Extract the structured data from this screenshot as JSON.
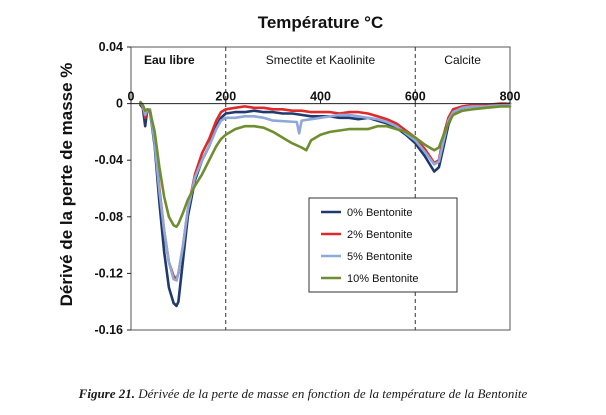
{
  "chart_data": {
    "type": "line",
    "title": "Température °C",
    "xlabel": "",
    "ylabel": "Dérivé de la perte de masse  %",
    "xlim": [
      0,
      800
    ],
    "ylim": [
      -0.16,
      0.04
    ],
    "xticks": [
      "0",
      "200",
      "400",
      "600",
      "800"
    ],
    "yticks": [
      "0.04",
      "0",
      "-0.04",
      "-0.08",
      "-0.12",
      "-0.16"
    ],
    "grid": false,
    "legend_position": "center-right",
    "regions": [
      {
        "label": "Eau libre",
        "from": 0,
        "to": 200
      },
      {
        "label": "Smectite et Kaolinite",
        "from": 200,
        "to": 600
      },
      {
        "label": "Calcite",
        "from": 600,
        "to": 800
      }
    ],
    "series": [
      {
        "name": "0% Bentonite",
        "color": "#1f3a6e",
        "points": [
          [
            20,
            -0.001
          ],
          [
            25,
            -0.003
          ],
          [
            30,
            -0.016
          ],
          [
            32,
            -0.01
          ],
          [
            35,
            -0.004
          ],
          [
            40,
            -0.005
          ],
          [
            50,
            -0.03
          ],
          [
            60,
            -0.07
          ],
          [
            70,
            -0.105
          ],
          [
            80,
            -0.13
          ],
          [
            90,
            -0.141
          ],
          [
            96,
            -0.143
          ],
          [
            100,
            -0.14
          ],
          [
            110,
            -0.11
          ],
          [
            120,
            -0.08
          ],
          [
            135,
            -0.054
          ],
          [
            150,
            -0.04
          ],
          [
            165,
            -0.03
          ],
          [
            180,
            -0.016
          ],
          [
            190,
            -0.01
          ],
          [
            200,
            -0.007
          ],
          [
            220,
            -0.006
          ],
          [
            240,
            -0.006
          ],
          [
            260,
            -0.005
          ],
          [
            280,
            -0.006
          ],
          [
            300,
            -0.006
          ],
          [
            320,
            -0.007
          ],
          [
            340,
            -0.007
          ],
          [
            360,
            -0.008
          ],
          [
            380,
            -0.009
          ],
          [
            400,
            -0.009
          ],
          [
            420,
            -0.009
          ],
          [
            440,
            -0.01
          ],
          [
            460,
            -0.01
          ],
          [
            480,
            -0.011
          ],
          [
            500,
            -0.01
          ],
          [
            520,
            -0.012
          ],
          [
            540,
            -0.014
          ],
          [
            560,
            -0.017
          ],
          [
            580,
            -0.022
          ],
          [
            600,
            -0.028
          ],
          [
            620,
            -0.037
          ],
          [
            640,
            -0.048
          ],
          [
            650,
            -0.045
          ],
          [
            660,
            -0.03
          ],
          [
            670,
            -0.015
          ],
          [
            680,
            -0.007
          ],
          [
            700,
            -0.003
          ],
          [
            720,
            -0.002
          ],
          [
            750,
            -0.002
          ],
          [
            780,
            -0.001
          ],
          [
            800,
            0.0
          ]
        ]
      },
      {
        "name": "2% Bentonite",
        "color": "#e02a2a",
        "points": [
          [
            20,
            0.001
          ],
          [
            25,
            -0.002
          ],
          [
            30,
            -0.01
          ],
          [
            35,
            -0.005
          ],
          [
            40,
            -0.004
          ],
          [
            50,
            -0.025
          ],
          [
            60,
            -0.06
          ],
          [
            70,
            -0.09
          ],
          [
            80,
            -0.112
          ],
          [
            90,
            -0.122
          ],
          [
            96,
            -0.124
          ],
          [
            100,
            -0.12
          ],
          [
            110,
            -0.1
          ],
          [
            120,
            -0.075
          ],
          [
            135,
            -0.05
          ],
          [
            150,
            -0.035
          ],
          [
            165,
            -0.025
          ],
          [
            180,
            -0.012
          ],
          [
            190,
            -0.006
          ],
          [
            200,
            -0.004
          ],
          [
            220,
            -0.003
          ],
          [
            240,
            -0.002
          ],
          [
            260,
            -0.003
          ],
          [
            280,
            -0.003
          ],
          [
            300,
            -0.004
          ],
          [
            320,
            -0.004
          ],
          [
            340,
            -0.005
          ],
          [
            360,
            -0.005
          ],
          [
            380,
            -0.006
          ],
          [
            400,
            -0.006
          ],
          [
            420,
            -0.006
          ],
          [
            440,
            -0.007
          ],
          [
            460,
            -0.006
          ],
          [
            480,
            -0.006
          ],
          [
            500,
            -0.007
          ],
          [
            520,
            -0.009
          ],
          [
            540,
            -0.011
          ],
          [
            560,
            -0.014
          ],
          [
            580,
            -0.019
          ],
          [
            600,
            -0.024
          ],
          [
            620,
            -0.032
          ],
          [
            640,
            -0.042
          ],
          [
            650,
            -0.04
          ],
          [
            660,
            -0.022
          ],
          [
            670,
            -0.01
          ],
          [
            680,
            -0.004
          ],
          [
            700,
            -0.002
          ],
          [
            720,
            -0.001
          ],
          [
            750,
            -0.001
          ],
          [
            780,
            0.0
          ],
          [
            800,
            0.0
          ]
        ]
      },
      {
        "name": "5% Bentonite",
        "color": "#8fa8d8",
        "points": [
          [
            20,
            0.001
          ],
          [
            25,
            -0.002
          ],
          [
            30,
            -0.008
          ],
          [
            35,
            -0.004
          ],
          [
            40,
            -0.004
          ],
          [
            50,
            -0.028
          ],
          [
            60,
            -0.062
          ],
          [
            70,
            -0.09
          ],
          [
            80,
            -0.112
          ],
          [
            90,
            -0.124
          ],
          [
            96,
            -0.125
          ],
          [
            100,
            -0.12
          ],
          [
            110,
            -0.1
          ],
          [
            120,
            -0.075
          ],
          [
            135,
            -0.052
          ],
          [
            150,
            -0.04
          ],
          [
            165,
            -0.03
          ],
          [
            180,
            -0.018
          ],
          [
            190,
            -0.012
          ],
          [
            200,
            -0.01
          ],
          [
            220,
            -0.01
          ],
          [
            240,
            -0.009
          ],
          [
            260,
            -0.009
          ],
          [
            280,
            -0.01
          ],
          [
            300,
            -0.012
          ],
          [
            350,
            -0.013
          ],
          [
            355,
            -0.021
          ],
          [
            360,
            -0.012
          ],
          [
            380,
            -0.011
          ],
          [
            400,
            -0.01
          ],
          [
            420,
            -0.009
          ],
          [
            440,
            -0.008
          ],
          [
            460,
            -0.008
          ],
          [
            480,
            -0.009
          ],
          [
            500,
            -0.01
          ],
          [
            520,
            -0.011
          ],
          [
            540,
            -0.013
          ],
          [
            560,
            -0.016
          ],
          [
            580,
            -0.021
          ],
          [
            600,
            -0.026
          ],
          [
            620,
            -0.034
          ],
          [
            640,
            -0.043
          ],
          [
            650,
            -0.041
          ],
          [
            660,
            -0.026
          ],
          [
            670,
            -0.012
          ],
          [
            680,
            -0.006
          ],
          [
            700,
            -0.003
          ],
          [
            720,
            -0.002
          ],
          [
            750,
            -0.002
          ],
          [
            780,
            -0.001
          ],
          [
            800,
            0.0
          ]
        ]
      },
      {
        "name": "10% Bentonite",
        "color": "#6e8e2f",
        "points": [
          [
            20,
            0.001
          ],
          [
            25,
            -0.001
          ],
          [
            30,
            -0.005
          ],
          [
            35,
            -0.004
          ],
          [
            40,
            -0.005
          ],
          [
            50,
            -0.02
          ],
          [
            60,
            -0.045
          ],
          [
            70,
            -0.066
          ],
          [
            80,
            -0.08
          ],
          [
            90,
            -0.086
          ],
          [
            96,
            -0.087
          ],
          [
            100,
            -0.085
          ],
          [
            110,
            -0.077
          ],
          [
            120,
            -0.068
          ],
          [
            135,
            -0.058
          ],
          [
            150,
            -0.05
          ],
          [
            165,
            -0.04
          ],
          [
            180,
            -0.03
          ],
          [
            190,
            -0.025
          ],
          [
            200,
            -0.022
          ],
          [
            220,
            -0.018
          ],
          [
            240,
            -0.016
          ],
          [
            260,
            -0.016
          ],
          [
            280,
            -0.017
          ],
          [
            300,
            -0.02
          ],
          [
            320,
            -0.024
          ],
          [
            340,
            -0.028
          ],
          [
            360,
            -0.031
          ],
          [
            370,
            -0.033
          ],
          [
            380,
            -0.026
          ],
          [
            400,
            -0.022
          ],
          [
            420,
            -0.02
          ],
          [
            440,
            -0.019
          ],
          [
            460,
            -0.018
          ],
          [
            480,
            -0.018
          ],
          [
            500,
            -0.018
          ],
          [
            520,
            -0.016
          ],
          [
            540,
            -0.016
          ],
          [
            560,
            -0.018
          ],
          [
            580,
            -0.02
          ],
          [
            600,
            -0.024
          ],
          [
            620,
            -0.029
          ],
          [
            640,
            -0.033
          ],
          [
            650,
            -0.031
          ],
          [
            660,
            -0.022
          ],
          [
            670,
            -0.014
          ],
          [
            680,
            -0.008
          ],
          [
            700,
            -0.005
          ],
          [
            720,
            -0.004
          ],
          [
            750,
            -0.003
          ],
          [
            780,
            -0.002
          ],
          [
            800,
            -0.002
          ]
        ]
      }
    ]
  },
  "caption": {
    "label": "Figure 21.",
    "text": "Dérivée de la perte de masse en fonction de la température de la Bentonite"
  }
}
